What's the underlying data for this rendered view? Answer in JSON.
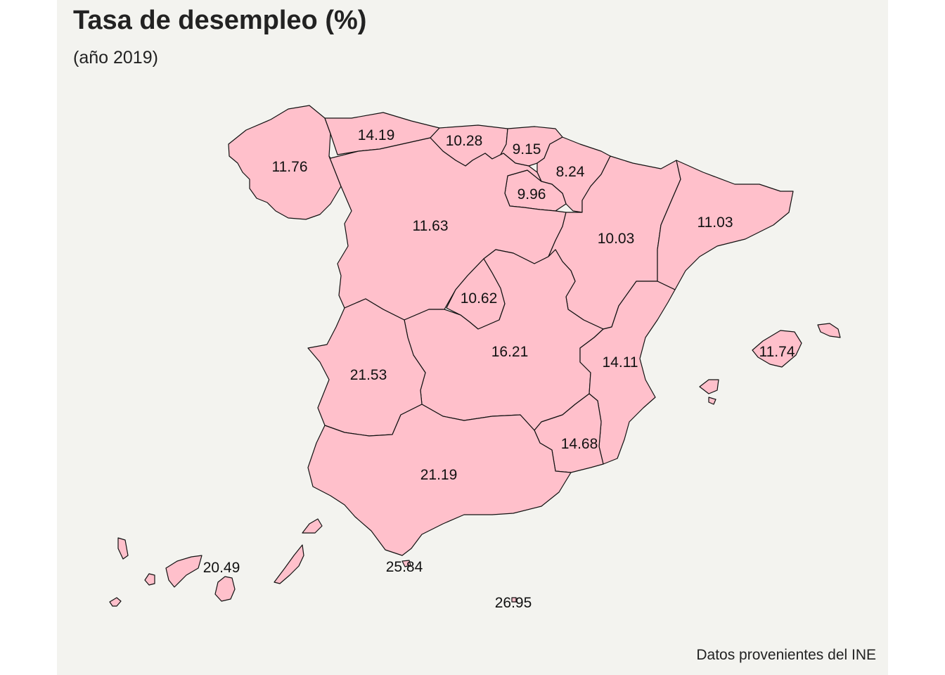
{
  "title": "Tasa de desempleo (%)",
  "subtitle": "(año 2019)",
  "caption": "Datos provenientes del INE",
  "colors": {
    "fill": "#ffc0cb",
    "stroke": "#111111",
    "background": "#f3f3ef"
  },
  "regions": {
    "galicia": "11.76",
    "asturias": "14.19",
    "cantabria": "10.28",
    "pais_vasco": "9.15",
    "navarra": "8.24",
    "la_rioja": "9.96",
    "castilla_leon": "11.63",
    "aragon": "10.03",
    "cataluna": "11.03",
    "madrid": "10.62",
    "castilla_la_mancha": "16.21",
    "extremadura": "21.53",
    "valencia": "14.11",
    "baleares": "11.74",
    "murcia": "14.68",
    "andalucia": "21.19",
    "canarias": "20.49",
    "ceuta": "25.84",
    "melilla": "26.95"
  }
}
